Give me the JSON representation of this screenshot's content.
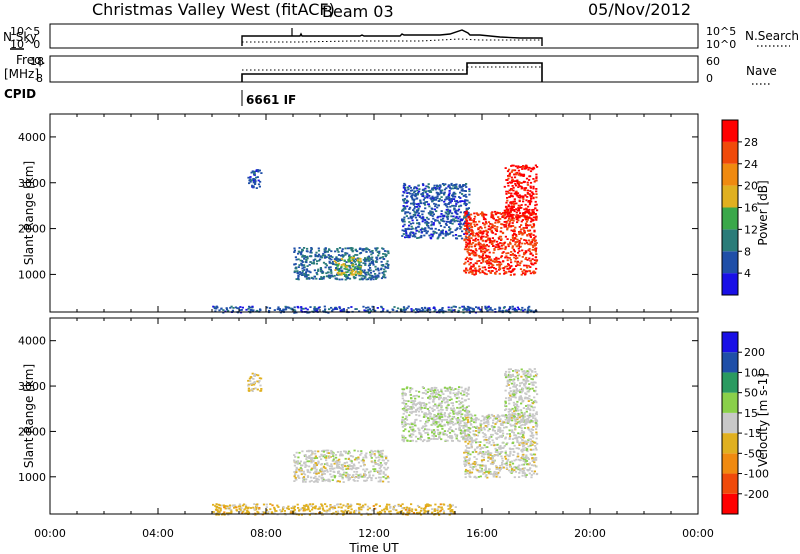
{
  "header": {
    "station": "Christmas Valley West (fitACF)",
    "beam": "Beam 03",
    "date": "05/Nov/2012"
  },
  "top_panels": {
    "nsky_label": "N.Sky",
    "nsky_ticks": [
      "10^5",
      "10^0"
    ],
    "nsearch_label": "N.Search",
    "nsearch_ticks": [
      "10^5",
      "10^0"
    ],
    "freq_label_1": "Freq.",
    "freq_label_2": "[MHz]",
    "freq_ticks": [
      "18",
      "8"
    ],
    "nave_label": "Nave",
    "nave_ticks": [
      "60",
      "0"
    ],
    "cpid_label": "CPID",
    "cpid_value": "6661 IF"
  },
  "x_axis": {
    "label": "Time UT",
    "ticks": [
      "00:00",
      "04:00",
      "08:00",
      "12:00",
      "16:00",
      "20:00",
      "00:00"
    ]
  },
  "power_panel": {
    "ylabel": "Slant Range [km]",
    "yticks": [
      "4000",
      "3000",
      "2000",
      "1000"
    ],
    "colorbar_label": "Power [dB]",
    "colorbar_ticks": [
      "28",
      "24",
      "20",
      "16",
      "12",
      "8",
      "4"
    ]
  },
  "velocity_panel": {
    "ylabel": "Slant Range [km]",
    "yticks": [
      "4000",
      "3000",
      "2000",
      "1000"
    ],
    "colorbar_label": "Velocity [m s-1]",
    "colorbar_ticks": [
      "200",
      "100",
      "50",
      "15",
      "-15",
      "-50",
      "-100",
      "-200"
    ]
  },
  "chart_data": [
    {
      "type": "heatmap",
      "name": "power",
      "x_unit_hours_ut": [
        0,
        24
      ],
      "ylim_km": [
        180,
        4500
      ],
      "color_scale": {
        "min": 0,
        "max": 32,
        "colors": [
          "#1a10e6",
          "#1f4fa8",
          "#2a7c79",
          "#3aa84a",
          "#e0b020",
          "#f08a10",
          "#f04a0a",
          "#ff0000"
        ]
      },
      "regions": [
        {
          "t": [
            6.0,
            18.0
          ],
          "r": [
            180,
            320
          ],
          "value": 6
        },
        {
          "t": [
            9.0,
            12.5
          ],
          "r": [
            900,
            1600
          ],
          "value": 8
        },
        {
          "t": [
            10.5,
            11.5
          ],
          "r": [
            1000,
            1400
          ],
          "value": 16
        },
        {
          "t": [
            7.3,
            7.8
          ],
          "r": [
            2900,
            3300
          ],
          "value": 6
        },
        {
          "t": [
            13.0,
            15.5
          ],
          "r": [
            1800,
            3000
          ],
          "value": 6
        },
        {
          "t": [
            15.3,
            18.0
          ],
          "r": [
            1000,
            2400
          ],
          "value": 28
        },
        {
          "t": [
            16.8,
            18.0
          ],
          "r": [
            2200,
            3400
          ],
          "value": 30
        }
      ]
    },
    {
      "type": "heatmap",
      "name": "velocity",
      "x_unit_hours_ut": [
        0,
        24
      ],
      "ylim_km": [
        180,
        4500
      ],
      "color_scale": {
        "min": -200,
        "max": 200,
        "colors": [
          "#ff0000",
          "#f04a0a",
          "#f08a10",
          "#e0b020",
          "#c8c8c8",
          "#8ad04a",
          "#2a9a60",
          "#1f4fa8",
          "#1a10e6"
        ]
      },
      "regions": [
        {
          "t": [
            6.0,
            15.0
          ],
          "r": [
            180,
            420
          ],
          "value": -40
        },
        {
          "t": [
            9.0,
            12.5
          ],
          "r": [
            900,
            1600
          ],
          "value": 0
        },
        {
          "t": [
            7.3,
            7.8
          ],
          "r": [
            2900,
            3300
          ],
          "value": -30
        },
        {
          "t": [
            13.0,
            15.5
          ],
          "r": [
            1800,
            3000
          ],
          "value": 10
        },
        {
          "t": [
            15.3,
            18.0
          ],
          "r": [
            1000,
            2400
          ],
          "value": 0
        },
        {
          "t": [
            16.8,
            18.0
          ],
          "r": [
            2200,
            3400
          ],
          "value": 5
        }
      ]
    }
  ]
}
